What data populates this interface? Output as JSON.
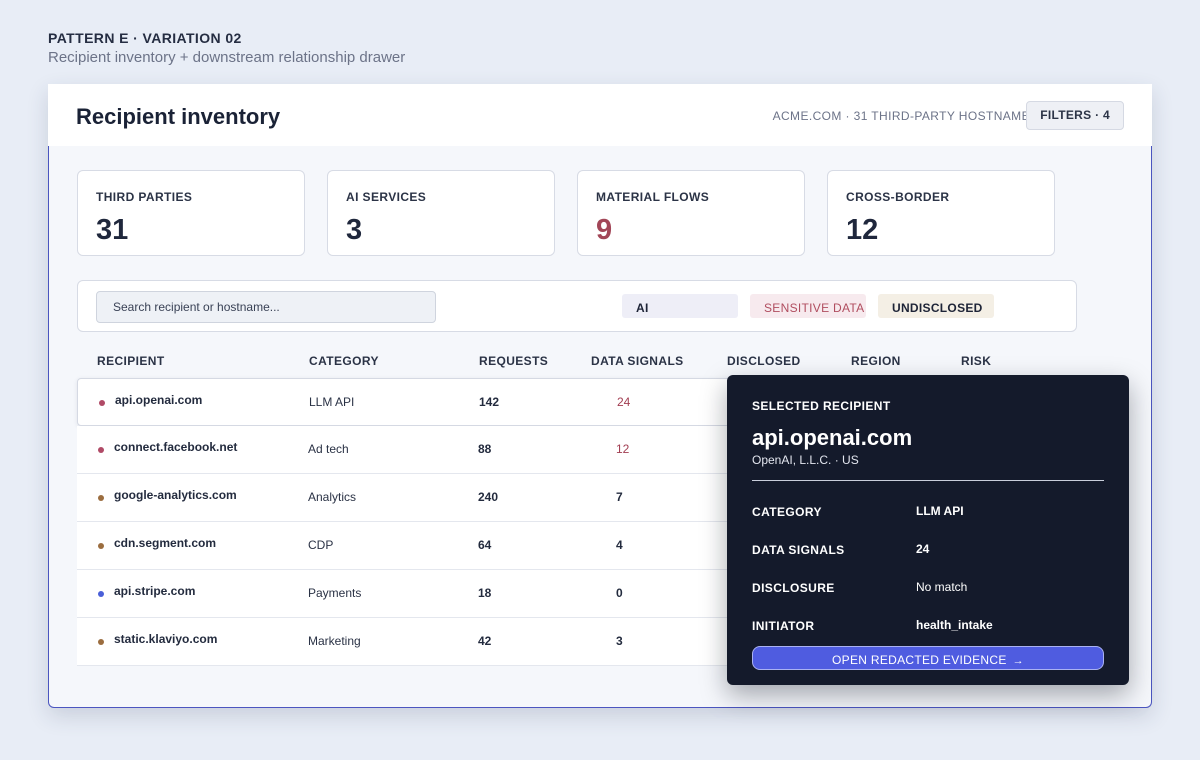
{
  "page": {
    "pattern_label": "PATTERN E · VARIATION 02",
    "pattern_subtitle": "Recipient inventory + downstream relationship drawer"
  },
  "header": {
    "title": "Recipient inventory",
    "meta": "ACME.COM · 31 THIRD-PARTY HOSTNAME",
    "filters_label": "FILTERS · 4"
  },
  "stats": [
    {
      "label": "THIRD PARTIES",
      "value": "31",
      "color": "#1f273c"
    },
    {
      "label": "AI SERVICES",
      "value": "3",
      "color": "#1f273c"
    },
    {
      "label": "MATERIAL FLOWS",
      "value": "9",
      "color": "#a24657"
    },
    {
      "label": "CROSS-BORDER",
      "value": "12",
      "color": "#1f273c"
    }
  ],
  "filterbar": {
    "search_placeholder": "Search recipient or hostname...",
    "chips": [
      "AI",
      "SENSITIVE DATA",
      "UNDISCLOSED"
    ]
  },
  "table": {
    "columns": [
      "RECIPIENT",
      "CATEGORY",
      "REQUESTS",
      "DATA SIGNALS",
      "DISCLOSED",
      "REGION",
      "RISK"
    ],
    "rows": [
      {
        "host": "api.openai.com",
        "category": "LLM API",
        "requests": "142",
        "signals": "24",
        "dot_color": "#b04a66"
      },
      {
        "host": "connect.facebook.net",
        "category": "Ad tech",
        "requests": "88",
        "signals": "12",
        "dot_color": "#b04a66"
      },
      {
        "host": "google-analytics.com",
        "category": "Analytics",
        "requests": "240",
        "signals": "7",
        "dot_color": "#9b6d3f"
      },
      {
        "host": "cdn.segment.com",
        "category": "CDP",
        "requests": "64",
        "signals": "4",
        "dot_color": "#9b6d3f"
      },
      {
        "host": "api.stripe.com",
        "category": "Payments",
        "requests": "18",
        "signals": "0",
        "dot_color": "#4a5fd8"
      },
      {
        "host": "static.klaviyo.com",
        "category": "Marketing",
        "requests": "42",
        "signals": "3",
        "dot_color": "#9b6d3f"
      }
    ]
  },
  "drawer": {
    "kicker": "SELECTED RECIPIENT",
    "title": "api.openai.com",
    "subtitle": "OpenAI, L.L.C. · US",
    "fields": [
      {
        "label": "CATEGORY",
        "value": "LLM API"
      },
      {
        "label": "DATA SIGNALS",
        "value": "24"
      },
      {
        "label": "DISCLOSURE",
        "value": "No match"
      },
      {
        "label": "INITIATOR",
        "value": "health_intake"
      }
    ],
    "button_label": "OPEN REDACTED EVIDENCE",
    "button_icon": "arrow-right-icon"
  }
}
